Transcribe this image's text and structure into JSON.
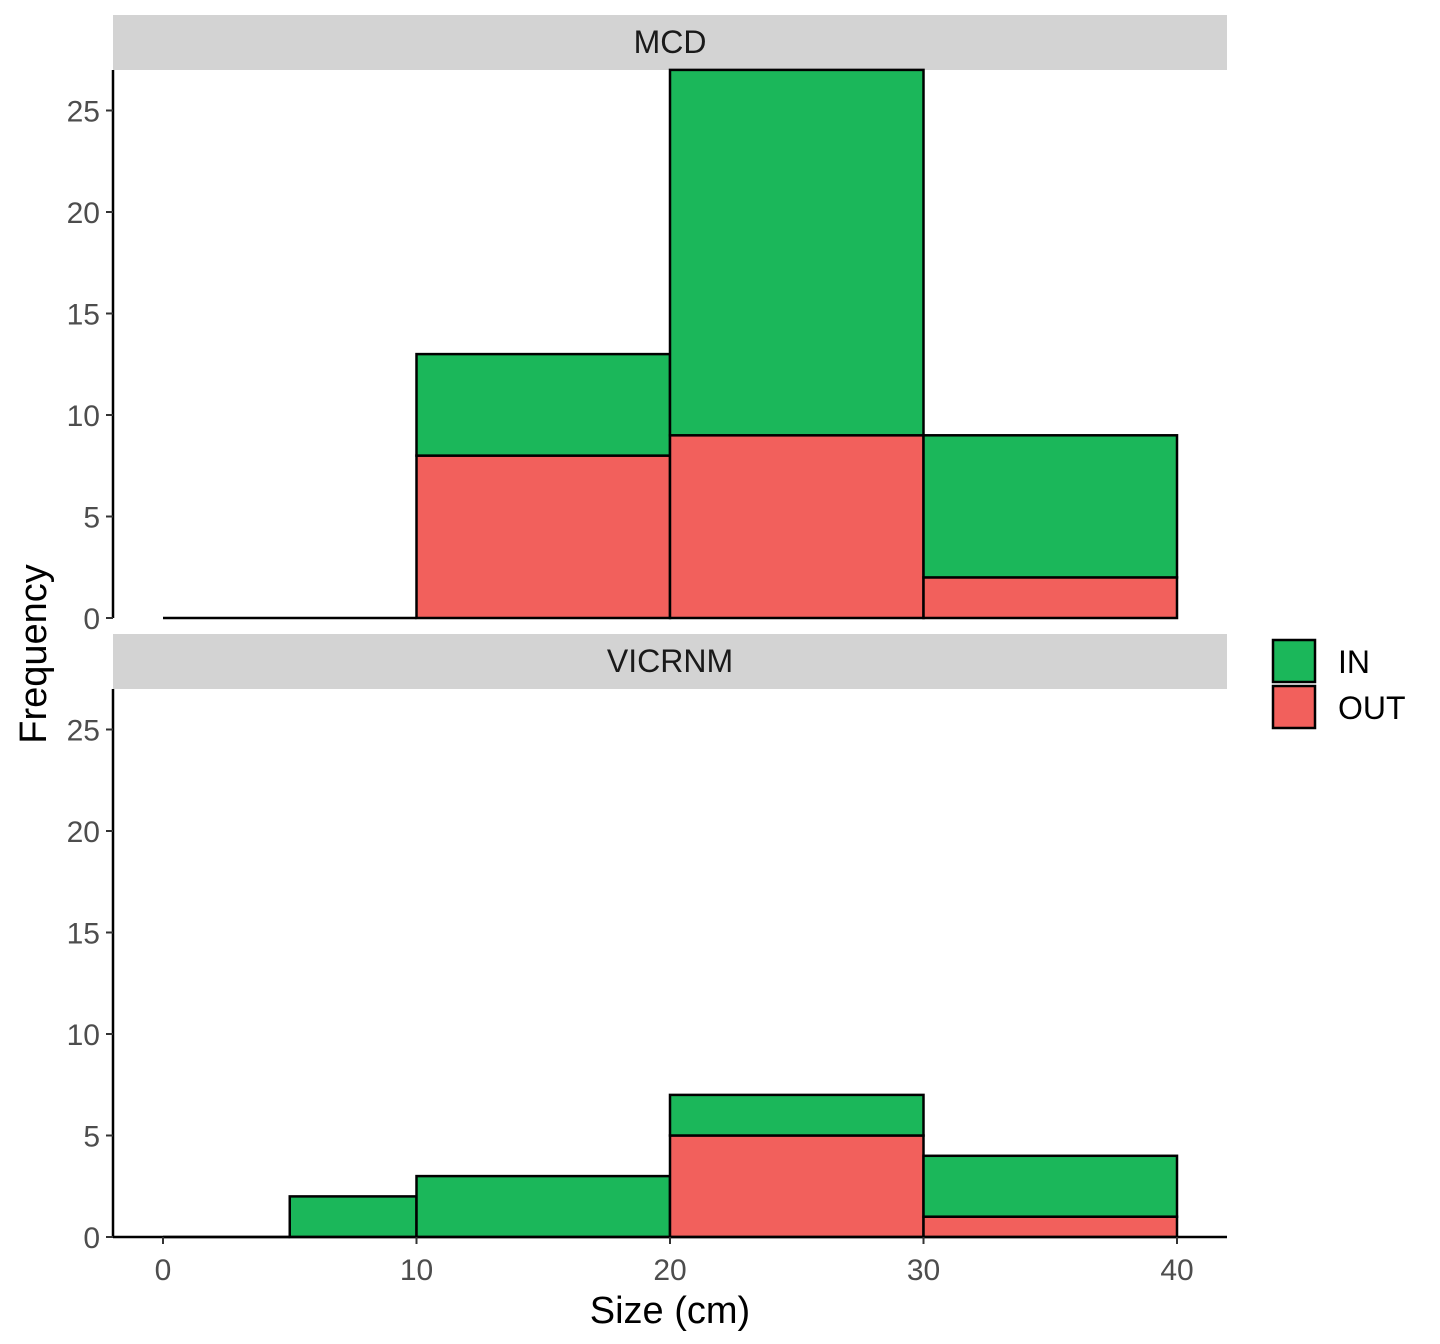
{
  "chart_data": {
    "type": "bar",
    "stacked": true,
    "histogram": true,
    "xlabel": "Size (cm)",
    "ylabel": "Frequency",
    "xlim": [
      0,
      40
    ],
    "ylim": [
      0,
      27
    ],
    "x_ticks": [
      "0",
      "10",
      "20",
      "30",
      "40"
    ],
    "y_ticks": [
      "0",
      "5",
      "10",
      "15",
      "20",
      "25"
    ],
    "grid": false,
    "legend": {
      "position": "right",
      "entries": [
        {
          "name": "IN",
          "color": "#1bb75a"
        },
        {
          "name": "OUT",
          "color": "#f2605c"
        }
      ]
    },
    "panels": [
      {
        "facet": "MCD",
        "bins": [
          {
            "x0": 0,
            "x1": 10,
            "OUT": 0,
            "IN": 0
          },
          {
            "x0": 10,
            "x1": 20,
            "OUT": 8,
            "IN": 5
          },
          {
            "x0": 20,
            "x1": 30,
            "OUT": 9,
            "IN": 18
          },
          {
            "x0": 30,
            "x1": 40,
            "OUT": 2,
            "IN": 7
          }
        ]
      },
      {
        "facet": "VICRNM",
        "bins": [
          {
            "x0": 0,
            "x1": 5,
            "OUT": 0,
            "IN": 0
          },
          {
            "x0": 5,
            "x1": 10,
            "OUT": 0,
            "IN": 2
          },
          {
            "x0": 10,
            "x1": 20,
            "OUT": 0,
            "IN": 3
          },
          {
            "x0": 20,
            "x1": 30,
            "OUT": 5,
            "IN": 2
          },
          {
            "x0": 30,
            "x1": 40,
            "OUT": 1,
            "IN": 3
          }
        ]
      }
    ]
  }
}
